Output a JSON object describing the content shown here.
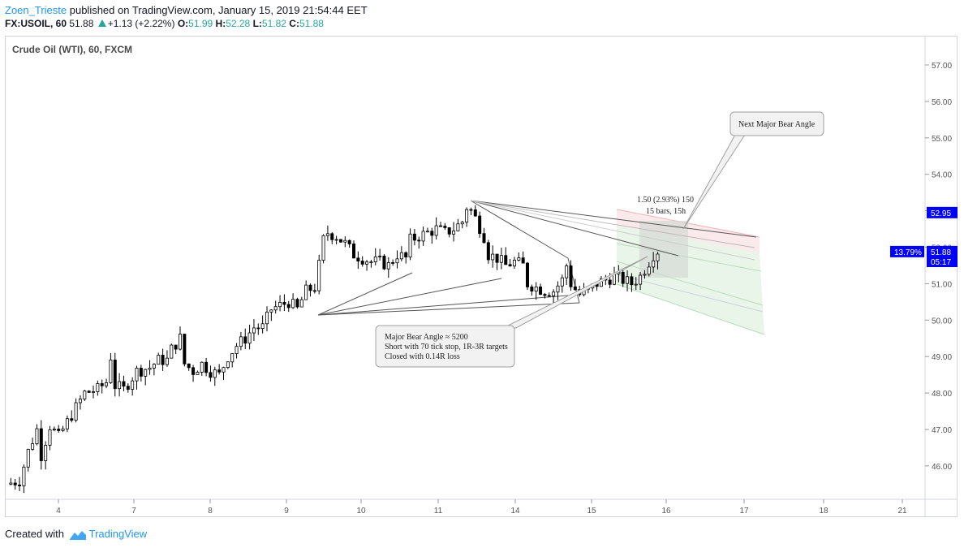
{
  "header": {
    "user": "Zoen_Trieste",
    "published_text": "published on TradingView.com, January 15, 2019 21:54:44 EET",
    "symbol": "FX:USOIL, 60",
    "last": "51.88",
    "change": "+1.13 (+2.22%)",
    "o_label": "O:",
    "o_val": "51.99",
    "h_label": "H:",
    "h_val": "52.28",
    "l_label": "L:",
    "l_val": "51.82",
    "c_label": "C:",
    "c_val": "51.88"
  },
  "footer": {
    "created_with": "Created with",
    "brand": "TradingView"
  },
  "colors": {
    "up": "#26a69a",
    "accent": "#2196f3",
    "price_label_bg": "#0000ff"
  },
  "chart_data": {
    "type": "candlestick",
    "title": "Crude Oil (WTI), 60, FXCM",
    "ylim": [
      45.3,
      57.6
    ],
    "y_ticks": [
      "57.00",
      "56.00",
      "55.00",
      "54.00",
      "53.00",
      "52.00",
      "51.00",
      "50.00",
      "49.00",
      "48.00",
      "47.00",
      "46.00"
    ],
    "x_ticks": [
      "4",
      "7",
      "8",
      "9",
      "10",
      "11",
      "14",
      "15",
      "16",
      "17",
      "18",
      "21"
    ],
    "price_labels": [
      {
        "text": "52.95",
        "value": 52.95
      },
      {
        "text": "51.88",
        "value": 51.88
      },
      {
        "text": "05:17",
        "value": 51.61
      }
    ],
    "percent_label": "13.79%",
    "annotations": {
      "next_angle": "Next Major Bear Angle",
      "rr_line1": "1.50 (2.93%) 150",
      "rr_line2": "15 bars, 15h",
      "note_line1": "Major Bear Angle ≈ 5200",
      "note_line2": "Short with 70 tick stop, 1R-3R targets",
      "note_line3": "Closed with 0.14R loss"
    },
    "price_path": [
      {
        "x": 0,
        "y": 45.5
      },
      {
        "x": 3,
        "y": 45.6
      },
      {
        "x": 5,
        "y": 46.4
      },
      {
        "x": 7,
        "y": 47.0
      },
      {
        "x": 8,
        "y": 46.3
      },
      {
        "x": 10,
        "y": 47.1
      },
      {
        "x": 12,
        "y": 46.8
      },
      {
        "x": 14,
        "y": 47.2
      },
      {
        "x": 16,
        "y": 47.6
      },
      {
        "x": 18,
        "y": 48.0
      },
      {
        "x": 21,
        "y": 48.1
      },
      {
        "x": 23,
        "y": 48.3
      },
      {
        "x": 24,
        "y": 49.0
      },
      {
        "x": 25,
        "y": 48.2
      },
      {
        "x": 27,
        "y": 48.1
      },
      {
        "x": 30,
        "y": 48.6
      },
      {
        "x": 33,
        "y": 48.7
      },
      {
        "x": 35,
        "y": 48.9
      },
      {
        "x": 37,
        "y": 48.9
      },
      {
        "x": 38,
        "y": 49.2
      },
      {
        "x": 40,
        "y": 49.5
      },
      {
        "x": 41,
        "y": 48.8
      },
      {
        "x": 43,
        "y": 48.6
      },
      {
        "x": 45,
        "y": 48.8
      },
      {
        "x": 47,
        "y": 48.6
      },
      {
        "x": 49,
        "y": 48.5
      },
      {
        "x": 51,
        "y": 49.0
      },
      {
        "x": 53,
        "y": 49.3
      },
      {
        "x": 55,
        "y": 49.5
      },
      {
        "x": 57,
        "y": 49.8
      },
      {
        "x": 59,
        "y": 49.8
      },
      {
        "x": 61,
        "y": 50.3
      },
      {
        "x": 63,
        "y": 50.4
      },
      {
        "x": 65,
        "y": 50.5
      },
      {
        "x": 67,
        "y": 50.3
      },
      {
        "x": 69,
        "y": 50.8
      },
      {
        "x": 71,
        "y": 50.9
      },
      {
        "x": 72,
        "y": 51.5
      },
      {
        "x": 73,
        "y": 52.2
      },
      {
        "x": 74,
        "y": 52.4
      },
      {
        "x": 76,
        "y": 52.3
      },
      {
        "x": 78,
        "y": 52.1
      },
      {
        "x": 80,
        "y": 51.8
      },
      {
        "x": 82,
        "y": 51.7
      },
      {
        "x": 84,
        "y": 51.6
      },
      {
        "x": 86,
        "y": 51.6
      },
      {
        "x": 88,
        "y": 51.5
      },
      {
        "x": 90,
        "y": 51.8
      },
      {
        "x": 92,
        "y": 51.7
      },
      {
        "x": 93,
        "y": 52.2
      },
      {
        "x": 95,
        "y": 52.3
      },
      {
        "x": 97,
        "y": 52.4
      },
      {
        "x": 99,
        "y": 52.5
      },
      {
        "x": 101,
        "y": 52.4
      },
      {
        "x": 103,
        "y": 52.5
      },
      {
        "x": 105,
        "y": 52.7
      },
      {
        "x": 106,
        "y": 53.1
      },
      {
        "x": 107,
        "y": 53.0
      },
      {
        "x": 108,
        "y": 52.8
      },
      {
        "x": 110,
        "y": 52.3
      },
      {
        "x": 111,
        "y": 51.8
      },
      {
        "x": 113,
        "y": 51.7
      },
      {
        "x": 115,
        "y": 51.5
      },
      {
        "x": 117,
        "y": 51.6
      },
      {
        "x": 119,
        "y": 51.5
      },
      {
        "x": 120,
        "y": 51.0
      },
      {
        "x": 122,
        "y": 50.9
      },
      {
        "x": 124,
        "y": 50.8
      },
      {
        "x": 126,
        "y": 50.8
      },
      {
        "x": 128,
        "y": 51.1
      },
      {
        "x": 129,
        "y": 51.5
      },
      {
        "x": 130,
        "y": 51.0
      },
      {
        "x": 132,
        "y": 50.7
      },
      {
        "x": 134,
        "y": 50.8
      },
      {
        "x": 136,
        "y": 51.0
      },
      {
        "x": 138,
        "y": 51.1
      },
      {
        "x": 140,
        "y": 51.2
      },
      {
        "x": 142,
        "y": 51.1
      },
      {
        "x": 144,
        "y": 51.0
      },
      {
        "x": 146,
        "y": 51.2
      },
      {
        "x": 148,
        "y": 51.6
      },
      {
        "x": 149,
        "y": 51.8
      },
      {
        "x": 150,
        "y": 51.9
      }
    ]
  }
}
